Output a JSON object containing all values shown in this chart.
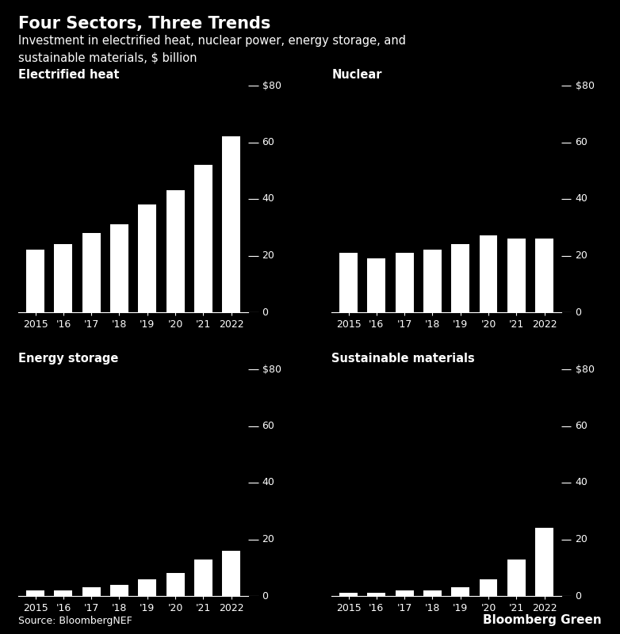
{
  "title": "Four Sectors, Three Trends",
  "subtitle": "Investment in electrified heat, nuclear power, energy storage, and\nsustainable materials, $ billion",
  "background_color": "#000000",
  "text_color": "#ffffff",
  "bar_color": "#ffffff",
  "categories": [
    "2015",
    "'16",
    "'17",
    "'18",
    "'19",
    "'20",
    "'21",
    "2022"
  ],
  "electrified_heat": [
    22,
    24,
    28,
    31,
    38,
    43,
    52,
    62
  ],
  "nuclear": [
    21,
    19,
    21,
    22,
    24,
    27,
    26,
    26
  ],
  "energy_storage": [
    2,
    2,
    3,
    4,
    6,
    8,
    13,
    16
  ],
  "sustainable_materials": [
    1,
    1,
    2,
    2,
    3,
    6,
    13,
    24
  ],
  "panel_titles": [
    "Electrified heat",
    "Nuclear",
    "Energy storage",
    "Sustainable materials"
  ],
  "ylim": [
    0,
    80
  ],
  "yticks": [
    0,
    20,
    40,
    60,
    80
  ],
  "ytick_labels": [
    "0",
    "20",
    "40",
    "60",
    "$80"
  ],
  "source_text": "Source: BloombergNEF",
  "brand_text": "Bloomberg Green",
  "title_fontsize": 15,
  "subtitle_fontsize": 10.5,
  "panel_title_fontsize": 10.5,
  "tick_fontsize": 9,
  "source_fontsize": 9,
  "brand_fontsize": 11
}
